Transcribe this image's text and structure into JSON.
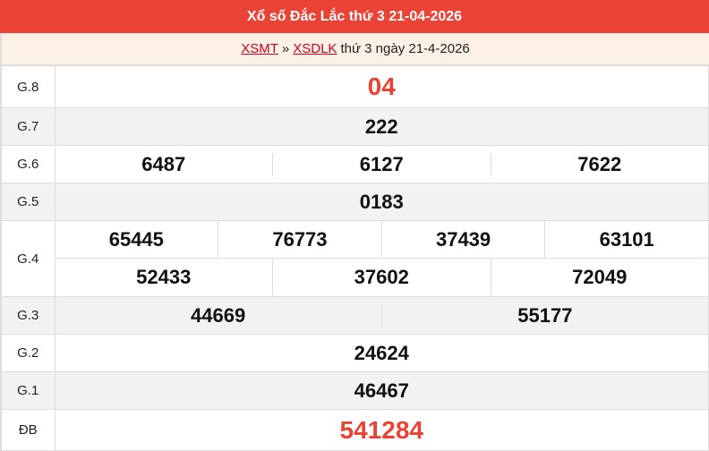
{
  "header": {
    "title": "Xổ số Đắc Lắc thứ 3 21-04-2026"
  },
  "breadcrumb": {
    "link1": "XSMT",
    "separator": "»",
    "link2": "XSDLK",
    "text": "thứ 3 ngày 21-4-2026"
  },
  "prizes": {
    "g8": {
      "label": "G.8",
      "values": [
        "04"
      ]
    },
    "g7": {
      "label": "G.7",
      "values": [
        "222"
      ]
    },
    "g6": {
      "label": "G.6",
      "values": [
        "6487",
        "6127",
        "7622"
      ]
    },
    "g5": {
      "label": "G.5",
      "values": [
        "0183"
      ]
    },
    "g4": {
      "label": "G.4",
      "values": [
        "65445",
        "76773",
        "37439",
        "63101",
        "52433",
        "37602",
        "72049"
      ]
    },
    "g3": {
      "label": "G.3",
      "values": [
        "44669",
        "55177"
      ]
    },
    "g2": {
      "label": "G.2",
      "values": [
        "24624"
      ]
    },
    "g1": {
      "label": "G.1",
      "values": [
        "46467"
      ]
    },
    "db": {
      "label": "ĐB",
      "values": [
        "541284"
      ]
    }
  },
  "colors": {
    "accent": "#ea4335",
    "subheader_bg": "#fdf1e6"
  }
}
